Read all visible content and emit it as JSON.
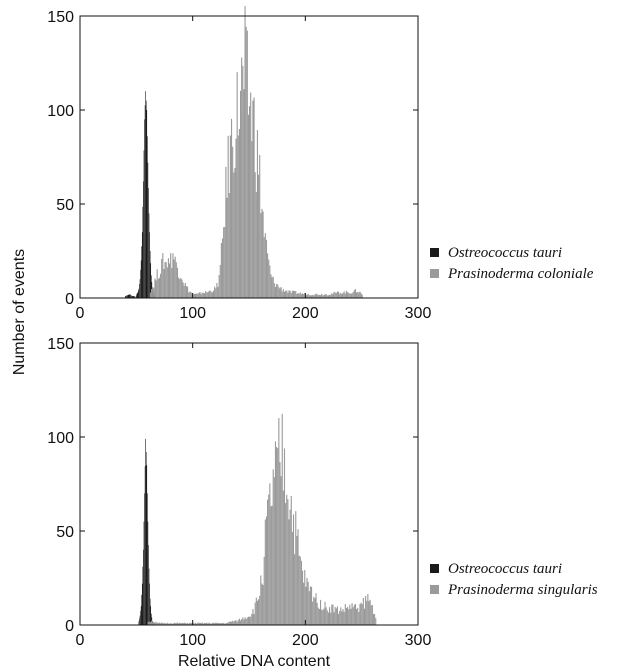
{
  "chart_data": [
    {
      "type": "histogram",
      "xlabel": "",
      "ylabel": "Number of events",
      "xlim": [
        0,
        300
      ],
      "ylim": [
        0,
        150
      ],
      "x_ticks": [
        "0",
        "100",
        "200",
        "300"
      ],
      "y_ticks": [
        "0",
        "50",
        "100",
        "150"
      ],
      "legend_position": "right",
      "series": [
        {
          "name": "Ostreococcus tauri",
          "color": "#1a1a1a",
          "points": [
            [
              40,
              1
            ],
            [
              44,
              2
            ],
            [
              46,
              1
            ],
            [
              48,
              1
            ],
            [
              49,
              0
            ],
            [
              50,
              2
            ],
            [
              51,
              3
            ],
            [
              52,
              5
            ],
            [
              53,
              10
            ],
            [
              54,
              20
            ],
            [
              55,
              35
            ],
            [
              56,
              62
            ],
            [
              57,
              95
            ],
            [
              58,
              110
            ],
            [
              59,
              100
            ],
            [
              60,
              72
            ],
            [
              61,
              45
            ],
            [
              62,
              25
            ],
            [
              63,
              12
            ],
            [
              64,
              5
            ],
            [
              65,
              2
            ],
            [
              66,
              1
            ]
          ]
        },
        {
          "name": "Prasinoderma coloniale",
          "color": "#9a9a9a",
          "points": [
            [
              62,
              4
            ],
            [
              64,
              6
            ],
            [
              66,
              9
            ],
            [
              68,
              12
            ],
            [
              70,
              15
            ],
            [
              72,
              17
            ],
            [
              74,
              20
            ],
            [
              76,
              18
            ],
            [
              78,
              22
            ],
            [
              80,
              20
            ],
            [
              82,
              24
            ],
            [
              84,
              19
            ],
            [
              86,
              17
            ],
            [
              88,
              14
            ],
            [
              90,
              12
            ],
            [
              92,
              8
            ],
            [
              94,
              6
            ],
            [
              96,
              4
            ],
            [
              98,
              3
            ],
            [
              100,
              2
            ],
            [
              104,
              2
            ],
            [
              108,
              3
            ],
            [
              112,
              3
            ],
            [
              116,
              4
            ],
            [
              120,
              5
            ],
            [
              122,
              8
            ],
            [
              124,
              15
            ],
            [
              126,
              30
            ],
            [
              128,
              48
            ],
            [
              130,
              62
            ],
            [
              132,
              75
            ],
            [
              134,
              82
            ],
            [
              136,
              90
            ],
            [
              138,
              95
            ],
            [
              140,
              100
            ],
            [
              142,
              108
            ],
            [
              144,
              112
            ],
            [
              146,
              120
            ],
            [
              148,
              110
            ],
            [
              150,
              105
            ],
            [
              152,
              98
            ],
            [
              154,
              92
            ],
            [
              156,
              80
            ],
            [
              158,
              70
            ],
            [
              160,
              55
            ],
            [
              162,
              42
            ],
            [
              164,
              30
            ],
            [
              166,
              22
            ],
            [
              168,
              15
            ],
            [
              170,
              10
            ],
            [
              174,
              7
            ],
            [
              178,
              5
            ],
            [
              182,
              4
            ],
            [
              186,
              3
            ],
            [
              190,
              3
            ],
            [
              200,
              2
            ],
            [
              210,
              2
            ],
            [
              220,
              2
            ],
            [
              230,
              3
            ],
            [
              240,
              3
            ],
            [
              246,
              4
            ],
            [
              250,
              2
            ]
          ]
        }
      ]
    },
    {
      "type": "histogram",
      "xlabel": "Relative DNA content",
      "ylabel": "Number of events",
      "xlim": [
        0,
        300
      ],
      "ylim": [
        0,
        150
      ],
      "x_ticks": [
        "0",
        "100",
        "200",
        "300"
      ],
      "y_ticks": [
        "0",
        "50",
        "100",
        "150"
      ],
      "legend_position": "right",
      "series": [
        {
          "name": "Ostreococcus tauri",
          "color": "#1a1a1a",
          "points": [
            [
              52,
              2
            ],
            [
              53,
              5
            ],
            [
              54,
              10
            ],
            [
              55,
              22
            ],
            [
              56,
              40
            ],
            [
              57,
              70
            ],
            [
              58,
              99
            ],
            [
              59,
              85
            ],
            [
              60,
              55
            ],
            [
              61,
              30
            ],
            [
              62,
              14
            ],
            [
              63,
              6
            ],
            [
              64,
              2
            ],
            [
              65,
              1
            ]
          ]
        },
        {
          "name": "Prasinoderma singularis",
          "color": "#9a9a9a",
          "points": [
            [
              60,
              2
            ],
            [
              64,
              2
            ],
            [
              68,
              1
            ],
            [
              130,
              1
            ],
            [
              134,
              2
            ],
            [
              138,
              2
            ],
            [
              142,
              3
            ],
            [
              146,
              4
            ],
            [
              150,
              5
            ],
            [
              154,
              8
            ],
            [
              158,
              15
            ],
            [
              162,
              30
            ],
            [
              164,
              45
            ],
            [
              166,
              55
            ],
            [
              168,
              62
            ],
            [
              170,
              70
            ],
            [
              172,
              75
            ],
            [
              174,
              80
            ],
            [
              176,
              85
            ],
            [
              178,
              90
            ],
            [
              180,
              88
            ],
            [
              182,
              80
            ],
            [
              184,
              74
            ],
            [
              186,
              68
            ],
            [
              188,
              58
            ],
            [
              190,
              52
            ],
            [
              192,
              45
            ],
            [
              194,
              36
            ],
            [
              196,
              30
            ],
            [
              198,
              26
            ],
            [
              200,
              22
            ],
            [
              204,
              18
            ],
            [
              208,
              15
            ],
            [
              212,
              12
            ],
            [
              216,
              10
            ],
            [
              220,
              9
            ],
            [
              224,
              9
            ],
            [
              228,
              8
            ],
            [
              232,
              8
            ],
            [
              236,
              9
            ],
            [
              240,
              10
            ],
            [
              244,
              9
            ],
            [
              248,
              10
            ],
            [
              252,
              12
            ],
            [
              255,
              14
            ],
            [
              258,
              11
            ],
            [
              260,
              8
            ],
            [
              262,
              5
            ]
          ]
        }
      ]
    }
  ]
}
